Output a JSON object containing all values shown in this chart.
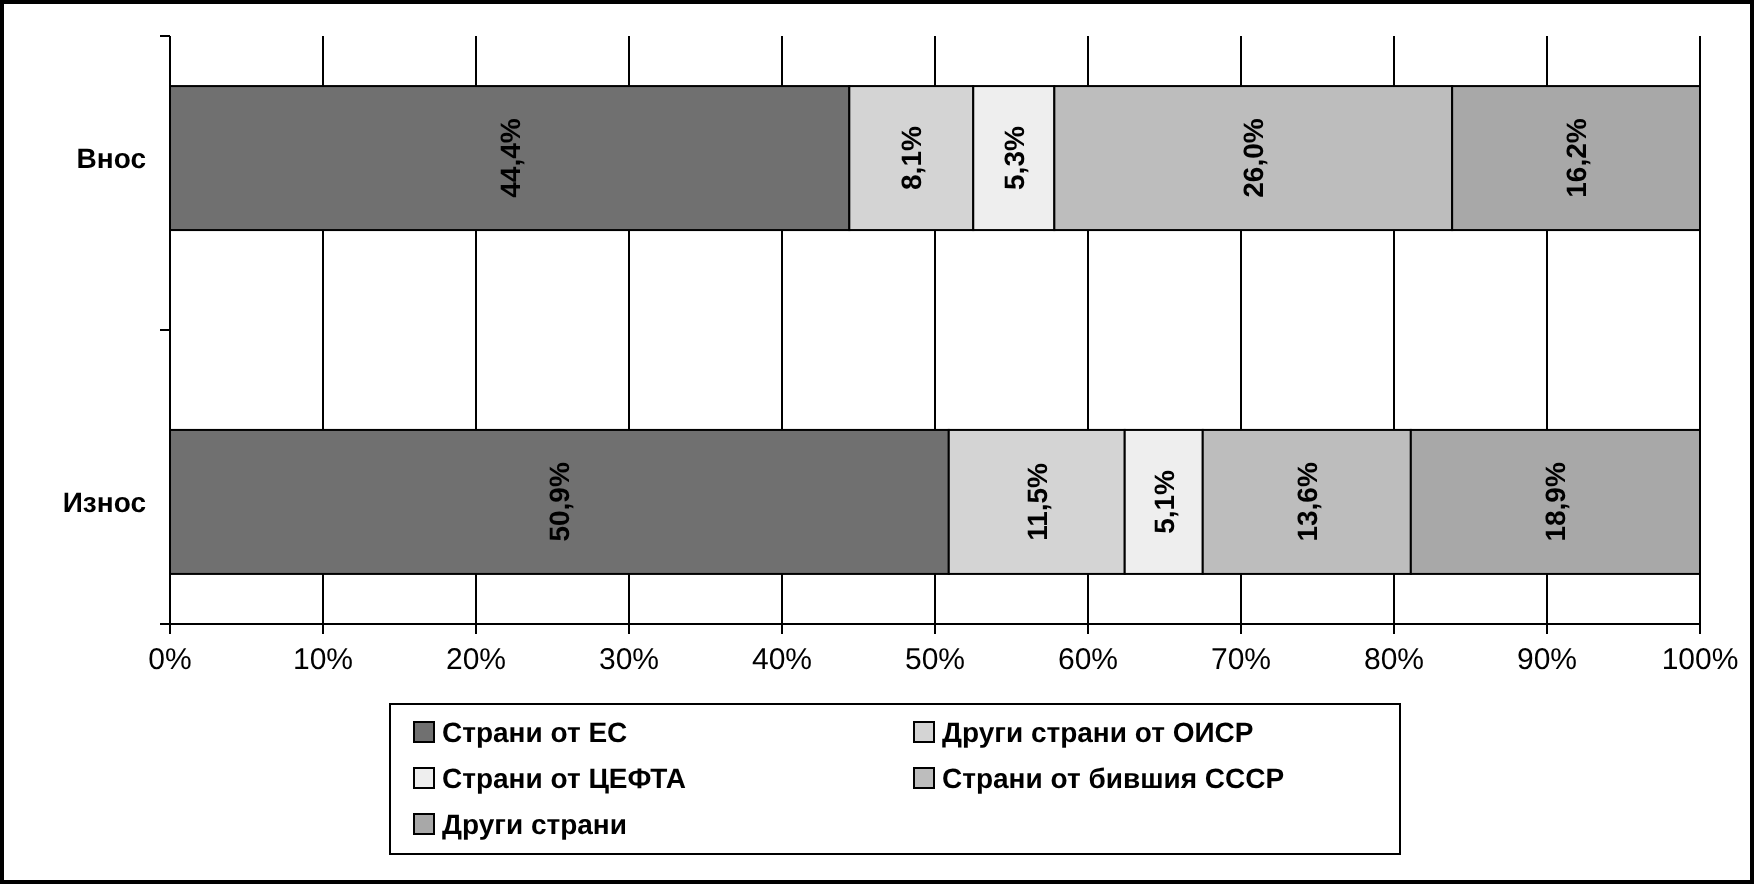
{
  "chart_data": {
    "type": "bar",
    "orientation": "horizontal",
    "stacked": true,
    "categories": [
      "Внос",
      "Износ"
    ],
    "series": [
      {
        "name": "Страни от ЕС",
        "color": "#707070",
        "values": [
          44.4,
          50.9
        ],
        "value_labels": [
          "44,4%",
          "50,9%"
        ]
      },
      {
        "name": "Други страни от ОИСР",
        "color": "#d4d4d4",
        "values": [
          8.1,
          11.5
        ],
        "value_labels": [
          "8,1%",
          "11,5%"
        ]
      },
      {
        "name": "Страни от ЦЕФТА",
        "color": "#eeeeee",
        "values": [
          5.3,
          5.1
        ],
        "value_labels": [
          "5,3%",
          "5,1%"
        ]
      },
      {
        "name": "Страни от бившия СССР",
        "color": "#bdbdbd",
        "values": [
          26.0,
          13.6
        ],
        "value_labels": [
          "26,0%",
          "13,6%"
        ]
      },
      {
        "name": "Други страни",
        "color": "#a8a8a8",
        "values": [
          16.2,
          18.9
        ],
        "value_labels": [
          "16,2%",
          "18,9%"
        ]
      }
    ],
    "xlim": [
      0,
      100
    ],
    "xticks": [
      {
        "value": 0,
        "label": "0%"
      },
      {
        "value": 10,
        "label": "10%"
      },
      {
        "value": 20,
        "label": "20%"
      },
      {
        "value": 30,
        "label": "30%"
      },
      {
        "value": 40,
        "label": "40%"
      },
      {
        "value": 50,
        "label": "50%"
      },
      {
        "value": 60,
        "label": "60%"
      },
      {
        "value": 70,
        "label": "70%"
      },
      {
        "value": 80,
        "label": "80%"
      },
      {
        "value": 90,
        "label": "90%"
      },
      {
        "value": 100,
        "label": "100%"
      }
    ],
    "grid": "x",
    "legend": "bottom"
  }
}
